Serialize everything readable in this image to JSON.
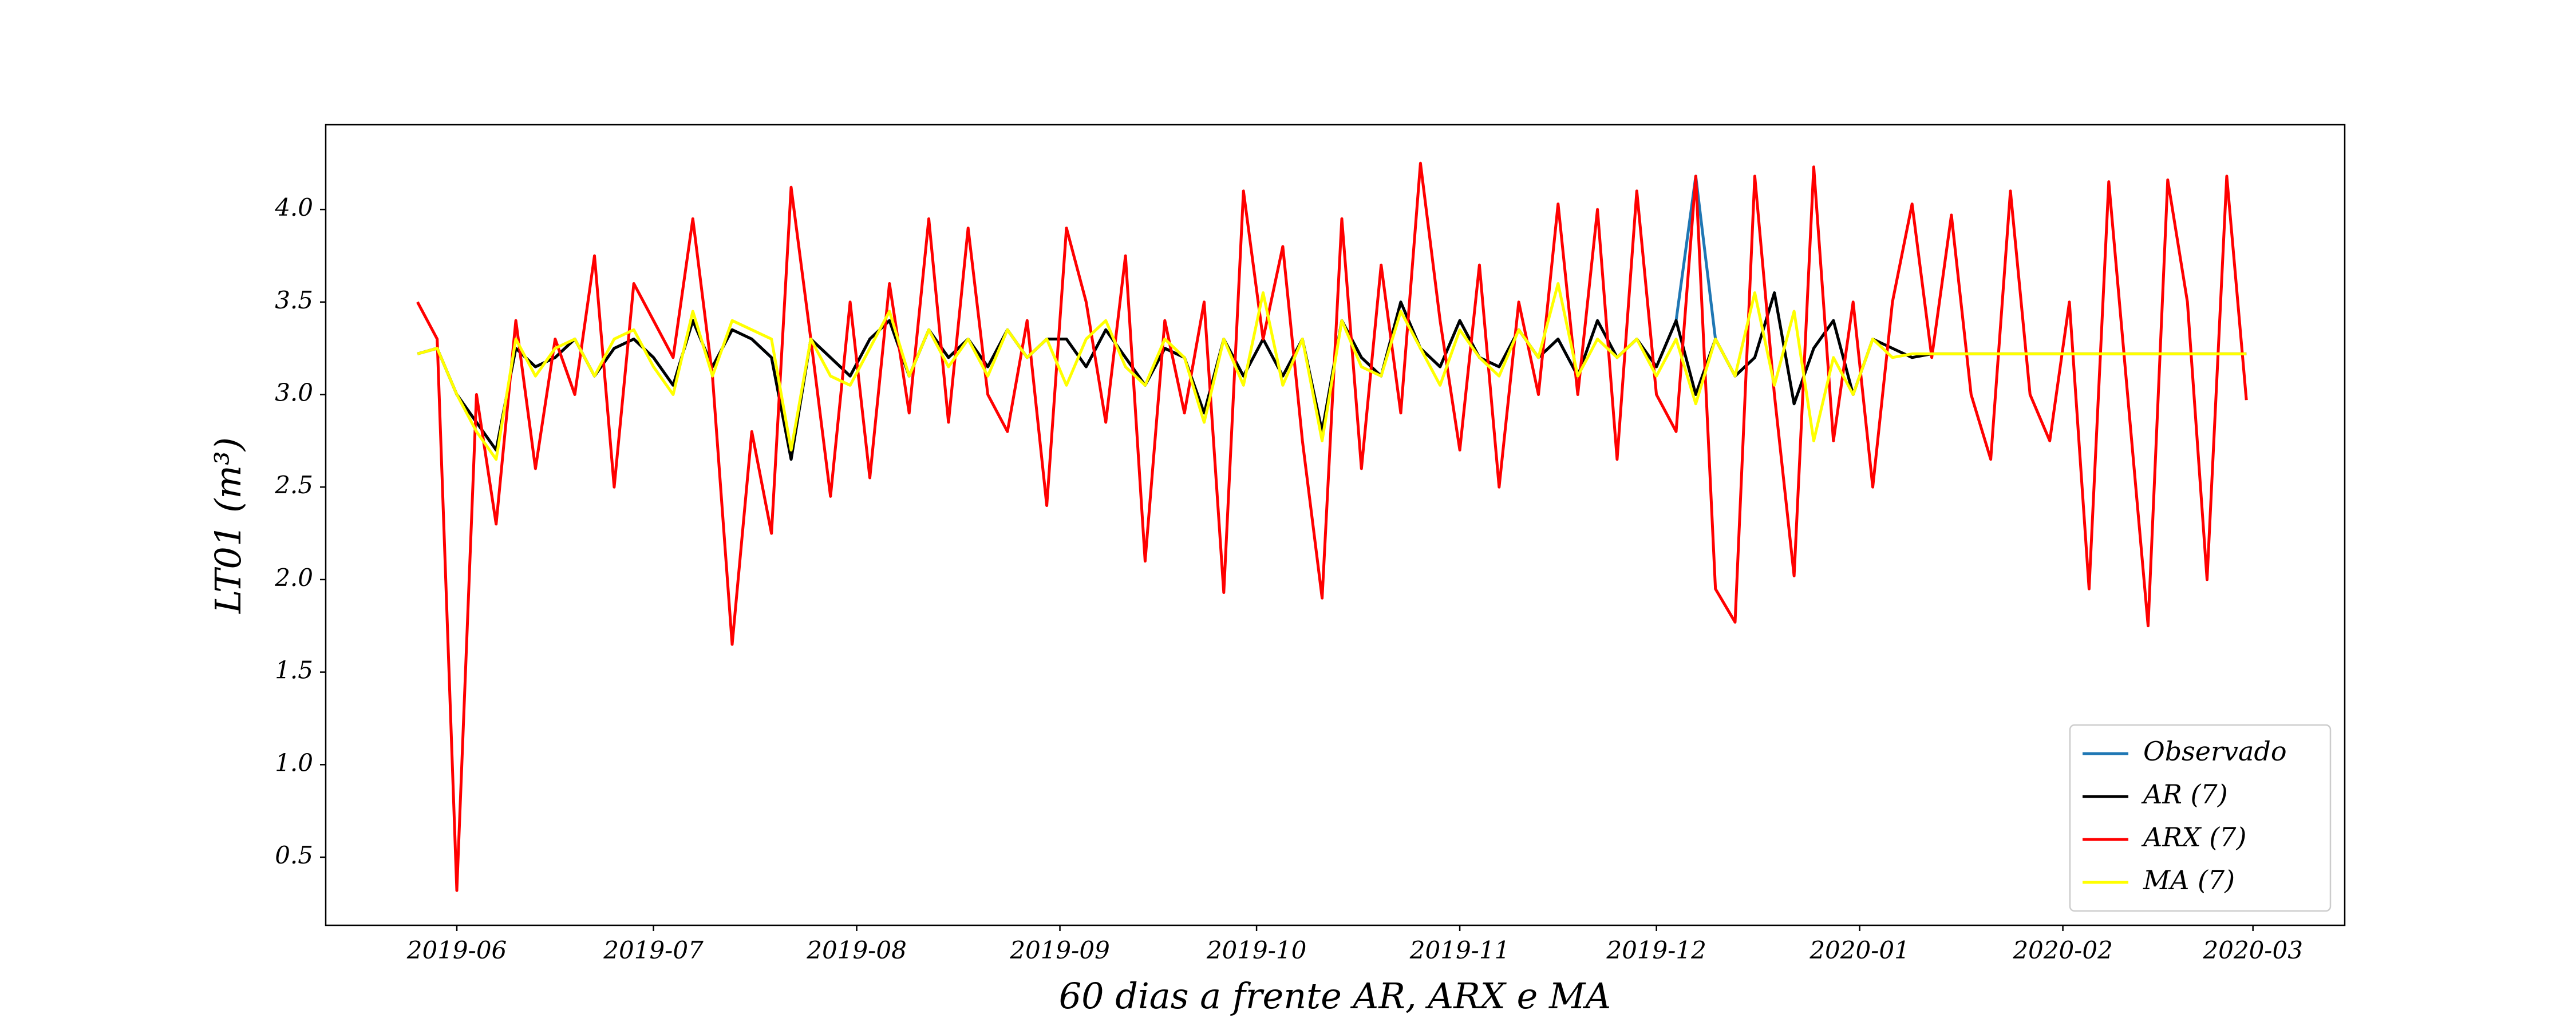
{
  "chart_data": {
    "type": "line",
    "xlabel": "60 dias a frente AR, ARX e MA",
    "ylabel": "LT01 (m³)",
    "x": [
      "2019-05-26",
      "2019-05-29",
      "2019-06-01",
      "2019-06-04",
      "2019-06-07",
      "2019-06-10",
      "2019-06-13",
      "2019-06-16",
      "2019-06-19",
      "2019-06-22",
      "2019-06-25",
      "2019-06-28",
      "2019-07-01",
      "2019-07-04",
      "2019-07-07",
      "2019-07-10",
      "2019-07-13",
      "2019-07-16",
      "2019-07-19",
      "2019-07-22",
      "2019-07-25",
      "2019-07-28",
      "2019-07-31",
      "2019-08-03",
      "2019-08-06",
      "2019-08-09",
      "2019-08-12",
      "2019-08-15",
      "2019-08-18",
      "2019-08-21",
      "2019-08-24",
      "2019-08-27",
      "2019-08-30",
      "2019-09-02",
      "2019-09-05",
      "2019-09-08",
      "2019-09-11",
      "2019-09-14",
      "2019-09-17",
      "2019-09-20",
      "2019-09-23",
      "2019-09-26",
      "2019-09-29",
      "2019-10-02",
      "2019-10-05",
      "2019-10-08",
      "2019-10-11",
      "2019-10-14",
      "2019-10-17",
      "2019-10-20",
      "2019-10-23",
      "2019-10-26",
      "2019-10-29",
      "2019-11-01",
      "2019-11-04",
      "2019-11-07",
      "2019-11-10",
      "2019-11-13",
      "2019-11-16",
      "2019-11-19",
      "2019-11-22",
      "2019-11-25",
      "2019-11-28",
      "2019-12-01",
      "2019-12-04",
      "2019-12-07",
      "2019-12-10",
      "2019-12-13",
      "2019-12-16",
      "2019-12-19",
      "2019-12-22",
      "2019-12-25",
      "2019-12-28",
      "2019-12-31",
      "2020-01-03",
      "2020-01-06",
      "2020-01-09",
      "2020-01-12",
      "2020-01-15",
      "2020-01-18",
      "2020-01-21",
      "2020-01-24",
      "2020-01-27",
      "2020-01-30",
      "2020-02-02",
      "2020-02-05",
      "2020-02-08",
      "2020-02-11",
      "2020-02-14",
      "2020-02-17",
      "2020-02-20",
      "2020-02-23",
      "2020-02-26",
      "2020-02-29"
    ],
    "series": [
      {
        "name": "Observado",
        "color": "#1f77b4",
        "values": [
          3.22,
          3.25,
          3.0,
          2.85,
          2.7,
          3.25,
          3.15,
          3.2,
          3.3,
          3.1,
          3.25,
          3.3,
          3.2,
          3.05,
          3.4,
          3.15,
          3.35,
          3.3,
          3.2,
          2.65,
          3.3,
          3.2,
          3.1,
          3.3,
          3.4,
          3.1,
          3.35,
          3.2,
          3.3,
          3.15,
          3.35,
          3.2,
          3.3,
          3.3,
          3.15,
          3.35,
          3.2,
          3.05,
          3.25,
          3.2,
          2.9,
          3.3,
          3.1,
          3.3,
          3.1,
          3.3,
          2.8,
          3.4,
          3.2,
          3.1,
          3.5,
          3.25,
          3.15,
          3.4,
          3.2,
          3.15,
          3.35,
          3.2,
          3.3,
          3.1,
          3.4,
          3.2,
          3.3,
          3.15,
          3.4,
          4.18,
          3.3,
          3.1,
          3.2,
          3.55,
          2.95,
          3.25,
          3.4,
          3.0,
          null,
          null,
          null,
          null,
          null,
          null,
          null,
          null,
          null,
          null,
          null,
          null,
          null,
          null,
          null,
          null,
          null,
          null,
          null,
          null
        ]
      },
      {
        "name": "AR (7)",
        "color": "#000000",
        "values": [
          3.22,
          3.25,
          3.0,
          2.85,
          2.7,
          3.25,
          3.15,
          3.2,
          3.3,
          3.1,
          3.25,
          3.3,
          3.2,
          3.05,
          3.4,
          3.15,
          3.35,
          3.3,
          3.2,
          2.65,
          3.3,
          3.2,
          3.1,
          3.3,
          3.4,
          3.1,
          3.35,
          3.2,
          3.3,
          3.15,
          3.35,
          3.2,
          3.3,
          3.3,
          3.15,
          3.35,
          3.2,
          3.05,
          3.25,
          3.2,
          2.9,
          3.3,
          3.1,
          3.3,
          3.1,
          3.3,
          2.8,
          3.4,
          3.2,
          3.1,
          3.5,
          3.25,
          3.15,
          3.4,
          3.2,
          3.15,
          3.35,
          3.2,
          3.3,
          3.1,
          3.4,
          3.2,
          3.3,
          3.15,
          3.4,
          3.0,
          3.3,
          3.1,
          3.2,
          3.55,
          2.95,
          3.25,
          3.4,
          3.0,
          3.3,
          3.25,
          3.2,
          3.22,
          3.22,
          3.22,
          3.22,
          3.22,
          3.22,
          3.22,
          3.22,
          3.22,
          3.22,
          3.22,
          3.22,
          3.22,
          3.22,
          3.22,
          3.22,
          3.22
        ]
      },
      {
        "name": "ARX (7)",
        "color": "#ff0000",
        "values": [
          3.5,
          3.3,
          0.32,
          3.0,
          2.3,
          3.4,
          2.6,
          3.3,
          3.0,
          3.75,
          2.5,
          3.6,
          3.4,
          3.2,
          3.95,
          3.1,
          1.65,
          2.8,
          2.25,
          4.12,
          3.3,
          2.45,
          3.5,
          2.55,
          3.6,
          2.9,
          3.95,
          2.85,
          3.9,
          3.0,
          2.8,
          3.4,
          2.4,
          3.9,
          3.5,
          2.85,
          3.75,
          2.1,
          3.4,
          2.9,
          3.5,
          1.93,
          4.1,
          3.3,
          3.8,
          2.75,
          1.9,
          3.95,
          2.6,
          3.7,
          2.9,
          4.25,
          3.4,
          2.7,
          3.7,
          2.5,
          3.5,
          3.0,
          4.03,
          3.0,
          4.0,
          2.65,
          4.1,
          3.0,
          2.8,
          4.18,
          1.95,
          1.77,
          4.18,
          3.0,
          2.02,
          4.23,
          2.75,
          3.5,
          2.5,
          3.5,
          4.03,
          3.2,
          3.97,
          3.0,
          2.65,
          4.1,
          3.0,
          2.75,
          3.5,
          1.95,
          4.15,
          2.95,
          1.75,
          4.16,
          3.5,
          2.0,
          4.18,
          2.97
        ]
      },
      {
        "name": "MA (7)",
        "color": "#ffff00",
        "values": [
          3.22,
          3.25,
          3.0,
          2.8,
          2.65,
          3.3,
          3.1,
          3.25,
          3.3,
          3.1,
          3.3,
          3.35,
          3.15,
          3.0,
          3.45,
          3.1,
          3.4,
          3.35,
          3.3,
          2.7,
          3.3,
          3.1,
          3.05,
          3.25,
          3.45,
          3.1,
          3.35,
          3.15,
          3.3,
          3.1,
          3.35,
          3.2,
          3.3,
          3.05,
          3.3,
          3.4,
          3.15,
          3.05,
          3.3,
          3.2,
          2.85,
          3.3,
          3.05,
          3.55,
          3.05,
          3.3,
          2.75,
          3.4,
          3.15,
          3.1,
          3.45,
          3.25,
          3.05,
          3.35,
          3.2,
          3.1,
          3.35,
          3.2,
          3.6,
          3.1,
          3.3,
          3.2,
          3.3,
          3.1,
          3.3,
          2.95,
          3.3,
          3.1,
          3.55,
          3.05,
          3.45,
          2.75,
          3.2,
          3.0,
          3.3,
          3.2,
          3.22,
          3.22,
          3.22,
          3.22,
          3.22,
          3.22,
          3.22,
          3.22,
          3.22,
          3.22,
          3.22,
          3.22,
          3.22,
          3.22,
          3.22,
          3.22,
          3.22,
          3.22
        ]
      }
    ],
    "xlim": [
      "2019-05-12",
      "2020-03-15"
    ],
    "xticks": [
      {
        "value": "2019-06-01",
        "label": "2019-06"
      },
      {
        "value": "2019-07-01",
        "label": "2019-07"
      },
      {
        "value": "2019-08-01",
        "label": "2019-08"
      },
      {
        "value": "2019-09-01",
        "label": "2019-09"
      },
      {
        "value": "2019-10-01",
        "label": "2019-10"
      },
      {
        "value": "2019-11-01",
        "label": "2019-11"
      },
      {
        "value": "2019-12-01",
        "label": "2019-12"
      },
      {
        "value": "2020-01-01",
        "label": "2020-01"
      },
      {
        "value": "2020-02-01",
        "label": "2020-02"
      },
      {
        "value": "2020-03-01",
        "label": "2020-03"
      }
    ],
    "ylim": [
      0.132,
      4.458
    ],
    "yticks": [
      0.5,
      {
        "value": 1,
        "label": "1.0"
      },
      1.5,
      {
        "value": 2,
        "label": "2.0"
      },
      2.5,
      {
        "value": 3,
        "label": "3.0"
      },
      3.5,
      {
        "value": 4,
        "label": "4.0"
      }
    ],
    "legend": "lower right",
    "grid": false
  }
}
